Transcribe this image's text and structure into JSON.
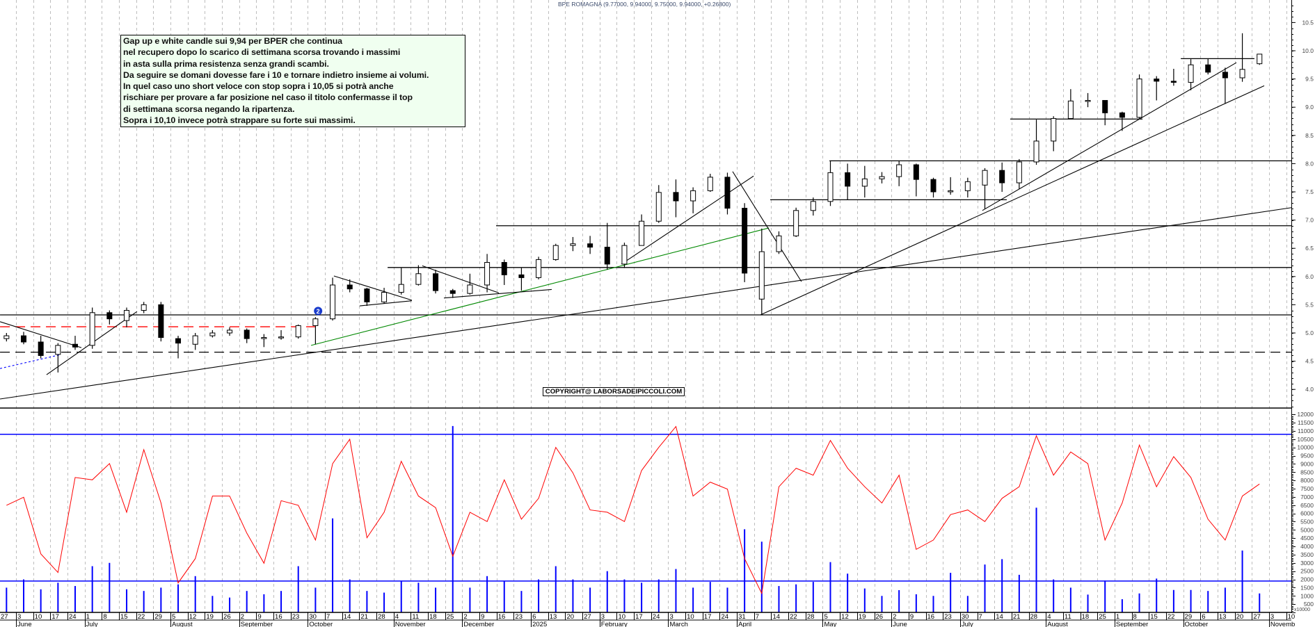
{
  "title": "BPE ROMAGNA (9.77000, 9.94000, 9.75000, 9.94000, +0.26800)",
  "note": {
    "lines": [
      "Gap up e white candle sui 9,94 per BPER che continua",
      "nel recupero dopo lo scarico di settimana scorsa trovando i massimi",
      "in asta sulla prima resistenza senza grandi scambi.",
      "Da seguire se domani dovesse fare i 10 e tornare indietro insieme ai volumi.",
      "In quel caso uno short veloce con stop sopra i 10,05 si potrà anche",
      "rischiare per provare a far posizione nel caso il titolo confermasse il top",
      "di settimana scorsa negando la ripartenza.",
      "Sopra i 10,10 invece potrà strappare su forte sui massimi."
    ]
  },
  "copyright": "COPYRIGHT@ LABORSADEIPICCOLI.COM",
  "marker": {
    "label": "2",
    "week_index": 18.6,
    "price": 5.39,
    "color": "#1a3ccc"
  },
  "x_axis": {
    "day_labels": [
      "27",
      "3",
      "10",
      "17",
      "24",
      "1",
      "8",
      "15",
      "22",
      "29",
      "5",
      "12",
      "19",
      "26",
      "2",
      "9",
      "16",
      "23",
      "30",
      "7",
      "14",
      "21",
      "28",
      "4",
      "11",
      "18",
      "25",
      "2",
      "9",
      "16",
      "23",
      "6",
      "13",
      "20",
      "27",
      "3",
      "10",
      "17",
      "24",
      "3",
      "10",
      "17",
      "24",
      "31",
      "7",
      "14",
      "22",
      "28",
      "5",
      "12",
      "19",
      "26",
      "2",
      "9",
      "16",
      "23",
      "30",
      "7",
      "14",
      "21",
      "28",
      "4",
      "11",
      "18",
      "25",
      "1",
      "8",
      "15",
      "22",
      "29",
      "6",
      "13",
      "20",
      "27",
      "3",
      "10"
    ],
    "month_labels": [
      {
        "label": "June",
        "week_index": 1
      },
      {
        "label": "July",
        "week_index": 5
      },
      {
        "label": "August",
        "week_index": 10
      },
      {
        "label": "September",
        "week_index": 14
      },
      {
        "label": "October",
        "week_index": 18
      },
      {
        "label": "November",
        "week_index": 23
      },
      {
        "label": "December",
        "week_index": 27
      },
      {
        "label": "2025",
        "week_index": 31
      },
      {
        "label": "February",
        "week_index": 35
      },
      {
        "label": "March",
        "week_index": 39
      },
      {
        "label": "April",
        "week_index": 43
      },
      {
        "label": "May",
        "week_index": 48
      },
      {
        "label": "June",
        "week_index": 52
      },
      {
        "label": "July",
        "week_index": 56
      },
      {
        "label": "August",
        "week_index": 61
      },
      {
        "label": "September",
        "week_index": 65
      },
      {
        "label": "October",
        "week_index": 69
      },
      {
        "label": "Novemb",
        "week_index": 74
      }
    ]
  },
  "chart_data": [
    {
      "type": "candlestick",
      "period": "weekly approximation of daily candles",
      "ylim": [
        3.6,
        10.9
      ],
      "y_ticks": [
        "4.0",
        "4.5",
        "5.0",
        "5.5",
        "6.0",
        "6.5",
        "7.0",
        "7.5",
        "8.0",
        "8.5",
        "9.0",
        "9.5",
        "10.0",
        "10.5"
      ],
      "colors": {
        "up_body": "#ffffff",
        "down_body": "#000000",
        "outline": "#000000"
      },
      "grid": "vertical dashed weekly",
      "weeks": [
        "2024-05-27",
        "2024-06-03",
        "2024-06-10",
        "2024-06-17",
        "2024-06-24",
        "2024-07-01",
        "2024-07-08",
        "2024-07-15",
        "2024-07-22",
        "2024-07-29",
        "2024-08-05",
        "2024-08-12",
        "2024-08-19",
        "2024-08-26",
        "2024-09-02",
        "2024-09-09",
        "2024-09-16",
        "2024-09-23",
        "2024-09-30",
        "2024-10-07",
        "2024-10-14",
        "2024-10-21",
        "2024-10-28",
        "2024-11-04",
        "2024-11-11",
        "2024-11-18",
        "2024-11-25",
        "2024-12-02",
        "2024-12-09",
        "2024-12-16",
        "2024-12-23",
        "2025-01-06",
        "2025-01-13",
        "2025-01-20",
        "2025-01-27",
        "2025-02-03",
        "2025-02-10",
        "2025-02-17",
        "2025-02-24",
        "2025-03-03",
        "2025-03-10",
        "2025-03-17",
        "2025-03-24",
        "2025-03-31",
        "2025-04-07",
        "2025-04-14",
        "2025-04-22",
        "2025-04-28",
        "2025-05-05",
        "2025-05-12",
        "2025-05-19",
        "2025-05-26",
        "2025-06-02",
        "2025-06-09",
        "2025-06-16",
        "2025-06-23",
        "2025-06-30",
        "2025-07-07",
        "2025-07-14",
        "2025-07-21",
        "2025-07-28",
        "2025-08-04",
        "2025-08-11",
        "2025-08-18",
        "2025-08-25",
        "2025-09-01",
        "2025-09-08",
        "2025-09-15",
        "2025-09-22",
        "2025-09-29",
        "2025-10-06",
        "2025-10-13",
        "2025-10-20",
        "2025-10-27"
      ],
      "open": [
        4.9,
        4.95,
        4.84,
        4.62,
        4.8,
        4.78,
        5.36,
        5.22,
        5.4,
        5.5,
        4.9,
        4.8,
        4.95,
        5.0,
        5.05,
        4.9,
        4.92,
        4.93,
        5.13,
        5.25,
        5.85,
        5.78,
        5.55,
        5.72,
        5.86,
        6.05,
        5.75,
        5.7,
        5.85,
        6.25,
        6.03,
        5.98,
        6.3,
        6.55,
        6.58,
        6.52,
        6.22,
        6.55,
        6.98,
        7.49,
        7.34,
        7.52,
        7.76,
        7.21,
        5.6,
        6.44,
        6.72,
        7.17,
        7.33,
        7.84,
        7.6,
        7.73,
        7.77,
        7.98,
        7.72,
        7.5,
        7.52,
        7.62,
        7.88,
        7.66,
        8.03,
        8.4,
        8.8,
        9.11,
        9.12,
        8.9,
        8.82,
        9.5,
        9.46,
        9.44,
        9.75,
        9.62,
        9.52,
        9.77
      ],
      "high": [
        5.0,
        5.02,
        4.95,
        4.82,
        4.95,
        5.45,
        5.4,
        5.45,
        5.55,
        5.55,
        4.95,
        5.0,
        5.05,
        5.1,
        5.08,
        4.98,
        5.05,
        5.15,
        5.28,
        5.98,
        5.95,
        5.8,
        5.8,
        6.15,
        6.2,
        6.12,
        5.78,
        6.05,
        6.4,
        6.3,
        6.15,
        6.35,
        6.58,
        6.7,
        6.72,
        6.95,
        6.6,
        7.1,
        7.62,
        7.72,
        7.58,
        7.82,
        7.84,
        7.3,
        6.85,
        6.8,
        7.22,
        7.4,
        8.05,
        8.0,
        7.96,
        7.85,
        8.05,
        8.0,
        7.75,
        7.76,
        7.75,
        7.92,
        8.02,
        8.08,
        8.78,
        8.84,
        9.32,
        9.25,
        9.12,
        8.92,
        9.58,
        9.55,
        9.68,
        9.85,
        9.86,
        9.7,
        10.31,
        9.94
      ],
      "low": [
        4.85,
        4.8,
        4.55,
        4.3,
        4.7,
        4.72,
        5.15,
        5.1,
        5.35,
        4.85,
        4.55,
        4.7,
        4.92,
        4.95,
        4.82,
        4.75,
        4.88,
        4.9,
        4.8,
        5.22,
        5.72,
        5.48,
        5.52,
        5.68,
        5.84,
        5.7,
        5.62,
        5.68,
        5.72,
        5.85,
        5.75,
        5.95,
        6.28,
        6.45,
        6.4,
        6.12,
        6.15,
        6.55,
        6.95,
        7.05,
        7.12,
        7.5,
        7.1,
        5.9,
        5.32,
        6.4,
        6.7,
        7.08,
        7.25,
        7.36,
        7.4,
        7.65,
        7.6,
        7.42,
        7.4,
        7.45,
        7.4,
        7.2,
        7.5,
        7.55,
        7.98,
        8.22,
        8.8,
        9.0,
        8.68,
        8.58,
        8.8,
        9.12,
        9.38,
        9.3,
        9.58,
        9.06,
        9.45,
        9.75
      ],
      "close": [
        4.95,
        4.84,
        4.6,
        4.78,
        4.75,
        5.36,
        5.25,
        5.4,
        5.5,
        4.92,
        4.82,
        4.95,
        5.0,
        5.05,
        4.9,
        4.92,
        4.93,
        5.13,
        5.25,
        5.85,
        5.78,
        5.55,
        5.72,
        5.86,
        6.05,
        5.75,
        5.7,
        5.85,
        6.25,
        6.03,
        5.98,
        6.3,
        6.55,
        6.58,
        6.52,
        6.22,
        6.55,
        6.98,
        7.49,
        7.34,
        7.52,
        7.76,
        7.21,
        6.06,
        6.44,
        6.72,
        7.17,
        7.33,
        7.84,
        7.6,
        7.73,
        7.77,
        7.98,
        7.72,
        7.5,
        7.52,
        7.68,
        7.88,
        7.66,
        8.03,
        8.4,
        8.8,
        9.11,
        9.12,
        8.9,
        8.82,
        9.5,
        9.46,
        9.44,
        9.75,
        9.62,
        9.52,
        9.67,
        9.94
      ],
      "horizontal_levels": [
        {
          "price": 5.32,
          "from_week": 0.07,
          "to_week": 75.3,
          "style": "solid",
          "color": "#000000"
        },
        {
          "price": 5.11,
          "from_week": 0.07,
          "to_week": 18.8,
          "style": "dashed",
          "color": "#ff0000"
        },
        {
          "price": 4.66,
          "from_week": 0.07,
          "to_week": 75.3,
          "style": "dashed",
          "color": "#000000"
        },
        {
          "price": 6.16,
          "from_week": 22.65,
          "to_week": 75.3,
          "style": "solid",
          "color": "#000000"
        },
        {
          "price": 6.9,
          "from_week": 28.97,
          "to_week": 75.3,
          "style": "solid",
          "color": "#000000"
        },
        {
          "price": 7.36,
          "from_week": 44.94,
          "to_week": 58.72,
          "style": "solid",
          "color": "#000000"
        },
        {
          "price": 8.05,
          "from_week": 48.39,
          "to_week": 75.3,
          "style": "solid",
          "color": "#000000"
        },
        {
          "price": 8.79,
          "from_week": 58.92,
          "to_week": 66.63,
          "style": "solid",
          "color": "#000000"
        },
        {
          "price": 9.86,
          "from_week": 68.86,
          "to_week": 73.15,
          "style": "solid",
          "color": "#000000"
        }
      ],
      "trendlines": [
        {
          "from": [
            0.07,
            3.83
          ],
          "to": [
            75.3,
            7.22
          ],
          "color": "#000000"
        },
        {
          "from": [
            44.37,
            5.32
          ],
          "to": [
            73.72,
            9.38
          ],
          "color": "#000000"
        },
        {
          "from": [
            57.3,
            7.17
          ],
          "to": [
            72.1,
            9.79
          ],
          "color": "#000000"
        },
        {
          "from": [
            18.19,
            4.78
          ],
          "to": [
            44.86,
            6.86
          ],
          "color": "#008800"
        },
        {
          "from": [
            0.07,
            4.37
          ],
          "to": [
            3.51,
            4.61
          ],
          "color": "#0000ff",
          "style": "dotted"
        },
        {
          "from": [
            0.07,
            5.2
          ],
          "to": [
            4.81,
            4.74
          ],
          "color": "#000000"
        },
        {
          "from": [
            2.78,
            4.26
          ],
          "to": [
            8.05,
            5.38
          ],
          "color": "#000000"
        },
        {
          "from": [
            19.52,
            6.01
          ],
          "to": [
            24.06,
            5.58
          ],
          "color": "#000000"
        },
        {
          "from": [
            21.02,
            5.48
          ],
          "to": [
            24.06,
            5.57
          ],
          "color": "#000000"
        },
        {
          "from": [
            24.67,
            6.19
          ],
          "to": [
            29.13,
            5.71
          ],
          "color": "#000000"
        },
        {
          "from": [
            25.93,
            5.62
          ],
          "to": [
            32.21,
            5.77
          ],
          "color": "#000000"
        },
        {
          "from": [
            36.27,
            6.22
          ],
          "to": [
            43.97,
            7.78
          ],
          "color": "#000000"
        },
        {
          "from": [
            42.75,
            7.86
          ],
          "to": [
            46.76,
            5.91
          ],
          "color": "#000000"
        }
      ]
    },
    {
      "type": "line+bar",
      "ylim": [
        0,
        12000
      ],
      "y_ticks": [
        "12000",
        "11500",
        "11000",
        "10500",
        "10000",
        "9500",
        "9000",
        "8500",
        "8000",
        "7500",
        "7000",
        "6500",
        "6000",
        "5500",
        "5000",
        "4500",
        "4000",
        "3500",
        "3000",
        "2500",
        "2000",
        "1500",
        "1000",
        "500"
      ],
      "unit_label": "x10000",
      "reference_lines": [
        10800,
        1900
      ],
      "colors": {
        "oscillator": "#ff0000",
        "volume": "#0000ff",
        "reference": "#0000ff"
      },
      "oscillator": [
        6493,
        6984,
        3542,
        2418,
        8178,
        8038,
        9022,
        6071,
        9865,
        6633,
        1786,
        3261,
        7055,
        7055,
        4807,
        2980,
        6774,
        6493,
        4385,
        9022,
        10497,
        4526,
        6071,
        9162,
        7055,
        6352,
        3402,
        6071,
        5509,
        8038,
        5650,
        6914,
        10005,
        8460,
        6212,
        6071,
        5509,
        8600,
        10005,
        11270,
        7055,
        7898,
        7476,
        3261,
        1154,
        7617,
        8740,
        8319,
        10427,
        8740,
        7617,
        6633,
        8319,
        3823,
        4385,
        5930,
        6212,
        5509,
        6914,
        7617,
        10708,
        8319,
        9724,
        9022,
        4385,
        6633,
        10146,
        7617,
        9443,
        8178,
        5650,
        4385,
        7055,
        7785
      ],
      "volume": [
        1500,
        2000,
        1400,
        1800,
        1600,
        2800,
        3000,
        1400,
        1300,
        1500,
        1700,
        2200,
        1000,
        900,
        1300,
        1100,
        1300,
        2800,
        1500,
        5700,
        2000,
        1300,
        1200,
        1900,
        1800,
        1500,
        11300,
        1500,
        2200,
        1900,
        1300,
        2000,
        2800,
        2000,
        1500,
        2500,
        2000,
        1800,
        2000,
        2630,
        1500,
        1850,
        1500,
        5040,
        4290,
        1600,
        1700,
        1850,
        3050,
        2350,
        1450,
        1000,
        1350,
        1100,
        1000,
        2400,
        1000,
        2900,
        3230,
        2280,
        6350,
        2000,
        1500,
        1080,
        1930,
        800,
        1150,
        2050,
        1360,
        1360,
        1300,
        1500,
        3750,
        1150
      ]
    }
  ]
}
